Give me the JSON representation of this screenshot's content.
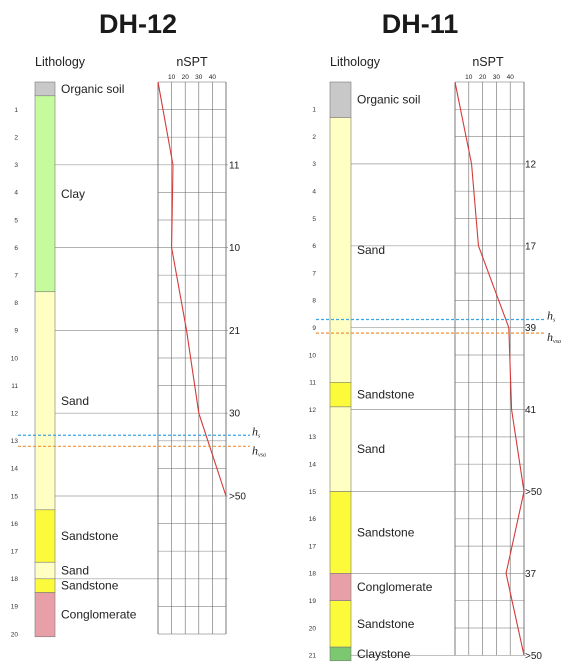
{
  "header": {
    "lithology_label": "Lithology",
    "nspt_label": "nSPT"
  },
  "colors": {
    "organic_soil": "#c8c8c8",
    "clay": "#c5fb9c",
    "sand": "#ffffc4",
    "sandstone": "#fbfb3c",
    "conglomerate": "#e8a0a8",
    "claystone": "#7cc870",
    "spt_line": "#d43a3a",
    "hs_line": "#3aa6e6",
    "hvsa_line": "#f0923a"
  },
  "markers": {
    "hs": {
      "base": "h",
      "sub": "s"
    },
    "hvsa": {
      "base": "h",
      "sub": "vsa"
    }
  },
  "chart_data": [
    {
      "type": "borehole_log",
      "title": "DH-12",
      "depth_range": [
        0,
        20
      ],
      "depth_tick_labels": [
        "1",
        "2",
        "3",
        "4",
        "5",
        "6",
        "7",
        "8",
        "9",
        "10",
        "11",
        "12",
        "13",
        "14",
        "15",
        "16",
        "17",
        "18",
        "19",
        "20"
      ],
      "nspt_axis": {
        "ticks": [
          10,
          20,
          30,
          40
        ],
        "range": [
          0,
          50
        ]
      },
      "layers": [
        {
          "name": "Organic soil",
          "top": 0,
          "bottom": 0.5,
          "color": "#c8c8c8"
        },
        {
          "name": "Clay",
          "top": 0.5,
          "bottom": 7.6,
          "color": "#c5fb9c"
        },
        {
          "name": "Sand",
          "top": 7.6,
          "bottom": 15.5,
          "color": "#ffffc4"
        },
        {
          "name": "Sandstone",
          "top": 15.5,
          "bottom": 17.4,
          "color": "#fbfb3c"
        },
        {
          "name": "Sand",
          "top": 17.4,
          "bottom": 18.0,
          "color": "#ffffc4"
        },
        {
          "name": "Sandstone",
          "top": 18.0,
          "bottom": 18.5,
          "color": "#fbfb3c"
        },
        {
          "name": "Conglomerate",
          "top": 18.5,
          "bottom": 20.1,
          "color": "#e8a0a8"
        }
      ],
      "nspt_profile": [
        {
          "depth": 0,
          "n": 0
        },
        {
          "depth": 3,
          "n": 11
        },
        {
          "depth": 6,
          "n": 10
        },
        {
          "depth": 9,
          "n": 21
        },
        {
          "depth": 12,
          "n": 30
        },
        {
          "depth": 15,
          "n": 50
        }
      ],
      "nspt_labels": [
        {
          "depth": 3,
          "text": "11"
        },
        {
          "depth": 6,
          "text": "10"
        },
        {
          "depth": 9,
          "text": "21"
        },
        {
          "depth": 12,
          "text": "30"
        },
        {
          "depth": 15,
          "text": ">50"
        }
      ],
      "hs_depth": 12.8,
      "hvsa_depth": 13.2
    },
    {
      "type": "borehole_log",
      "title": "DH-11",
      "depth_range": [
        0,
        21
      ],
      "depth_tick_labels": [
        "1",
        "2",
        "3",
        "4",
        "5",
        "6",
        "7",
        "8",
        "9",
        "10",
        "11",
        "12",
        "13",
        "14",
        "15",
        "16",
        "17",
        "18",
        "19",
        "20",
        "21"
      ],
      "nspt_axis": {
        "ticks": [
          10,
          20,
          30,
          40
        ],
        "range": [
          0,
          50
        ]
      },
      "layers": [
        {
          "name": "Organic soil",
          "top": 0,
          "bottom": 1.3,
          "color": "#c8c8c8"
        },
        {
          "name": "Sand",
          "top": 1.3,
          "bottom": 11.0,
          "color": "#ffffc4"
        },
        {
          "name": "Sandstone",
          "top": 11.0,
          "bottom": 11.9,
          "color": "#fbfb3c"
        },
        {
          "name": "Sand",
          "top": 11.9,
          "bottom": 15.0,
          "color": "#ffffc4"
        },
        {
          "name": "Sandstone",
          "top": 15.0,
          "bottom": 18.0,
          "color": "#fbfb3c"
        },
        {
          "name": "Conglomerate",
          "top": 18.0,
          "bottom": 19.0,
          "color": "#e8a0a8"
        },
        {
          "name": "Sandstone",
          "top": 19.0,
          "bottom": 20.7,
          "color": "#fbfb3c"
        },
        {
          "name": "Claystone",
          "top": 20.7,
          "bottom": 21.2,
          "color": "#7cc870"
        }
      ],
      "nspt_profile": [
        {
          "depth": 0,
          "n": 0
        },
        {
          "depth": 3,
          "n": 12
        },
        {
          "depth": 6,
          "n": 17
        },
        {
          "depth": 9,
          "n": 39
        },
        {
          "depth": 12,
          "n": 41
        },
        {
          "depth": 15,
          "n": 50
        },
        {
          "depth": 18,
          "n": 37
        },
        {
          "depth": 21,
          "n": 50
        }
      ],
      "nspt_labels": [
        {
          "depth": 3,
          "text": "12"
        },
        {
          "depth": 6,
          "text": "17"
        },
        {
          "depth": 9,
          "text": "39"
        },
        {
          "depth": 12,
          "text": "41"
        },
        {
          "depth": 15,
          "text": ">50"
        },
        {
          "depth": 18,
          "text": "37"
        },
        {
          "depth": 21,
          "text": ">50"
        }
      ],
      "hs_depth": 8.7,
      "hvsa_depth": 9.2
    }
  ]
}
